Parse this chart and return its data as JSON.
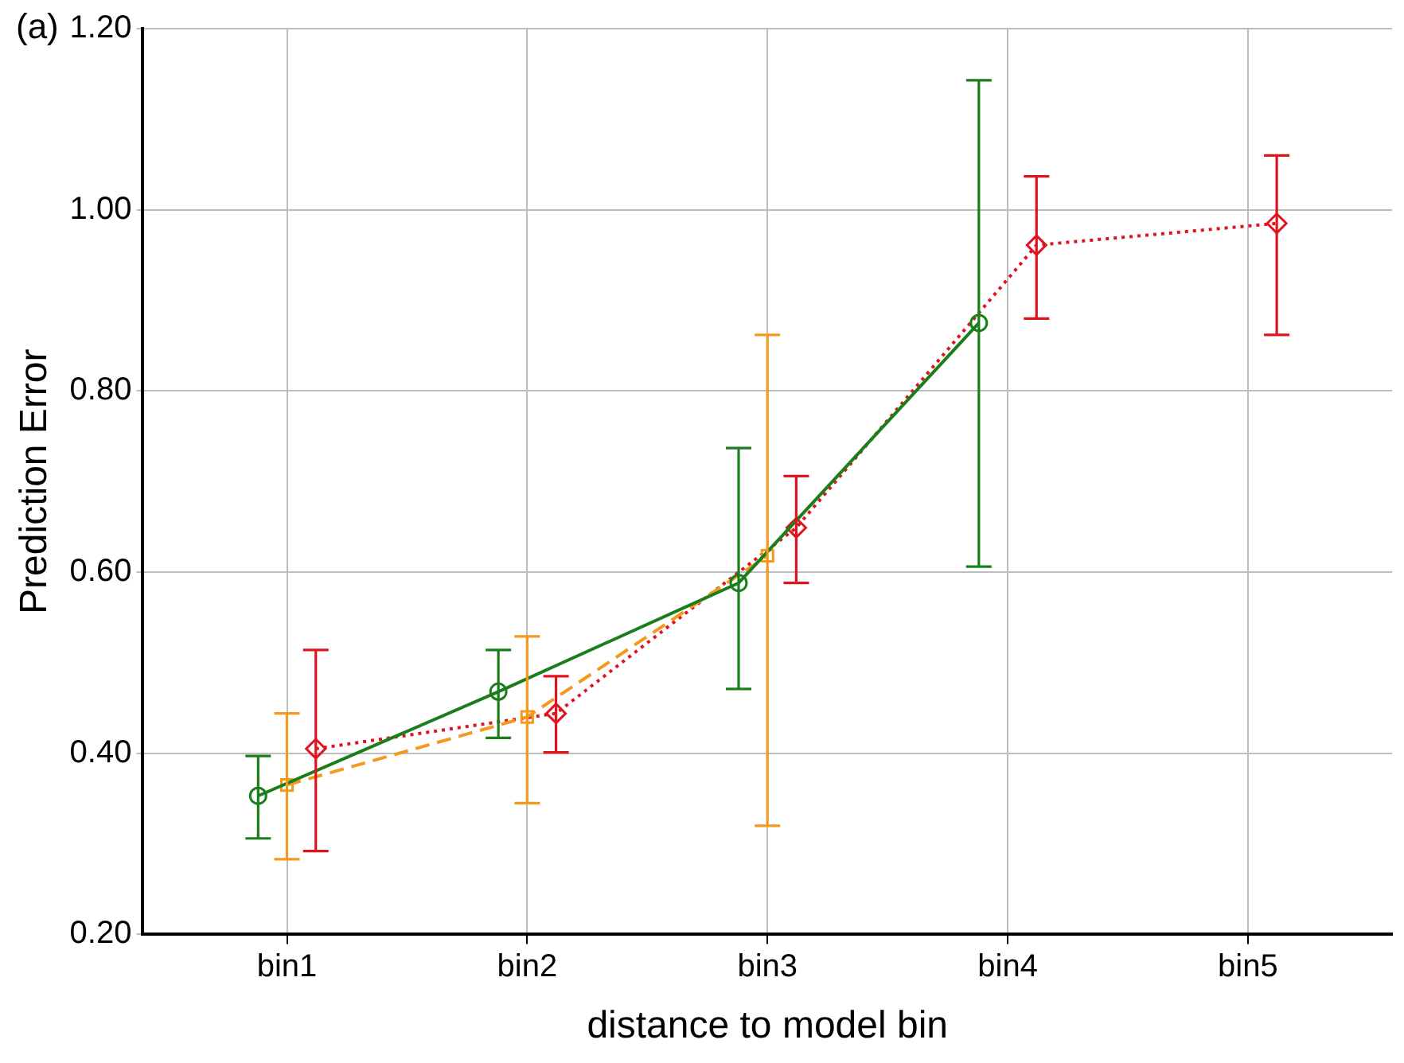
{
  "chart_data": {
    "type": "line",
    "xlabel": "distance to model bin",
    "ylabel": "Prediction Error",
    "annotations": [
      "(a)"
    ],
    "categories": [
      "bin1",
      "bin2",
      "bin3",
      "bin4",
      "bin5"
    ],
    "series": [
      {
        "color": "#1a7f1a",
        "marker": "circle",
        "line_style": "solid",
        "values": [
          0.353,
          0.468,
          0.588,
          0.875,
          null
        ],
        "errors": [
          [
            0.306,
            0.397
          ],
          [
            0.417,
            0.514
          ],
          [
            0.471,
            0.737
          ],
          [
            0.606,
            1.143
          ],
          null
        ]
      },
      {
        "color": "#f39a1e",
        "marker": "square",
        "line_style": "dashed",
        "values": [
          0.365,
          0.44,
          0.618,
          null,
          null
        ],
        "errors": [
          [
            0.283,
            0.444
          ],
          [
            0.345,
            0.529
          ],
          [
            0.32,
            0.862
          ],
          null,
          null
        ]
      },
      {
        "color": "#e0141e",
        "marker": "diamond",
        "line_style": "dotted",
        "values": [
          0.405,
          0.444,
          0.649,
          0.961,
          0.985
        ],
        "errors": [
          [
            0.292,
            0.514
          ],
          [
            0.401,
            0.485
          ],
          [
            0.588,
            0.706
          ],
          [
            0.88,
            1.037
          ],
          [
            0.862,
            1.06
          ]
        ]
      }
    ],
    "ylim": [
      0.2,
      1.2
    ],
    "yticks": [
      {
        "value": 0.2,
        "label": "0.20"
      },
      {
        "value": 0.4,
        "label": "0.40"
      },
      {
        "value": 0.6,
        "label": "0.60"
      },
      {
        "value": 0.8,
        "label": "0.80"
      },
      {
        "value": 1.0,
        "label": "1.00"
      },
      {
        "value": 1.2,
        "label": "1.20"
      }
    ],
    "grid": true,
    "legend": false
  }
}
